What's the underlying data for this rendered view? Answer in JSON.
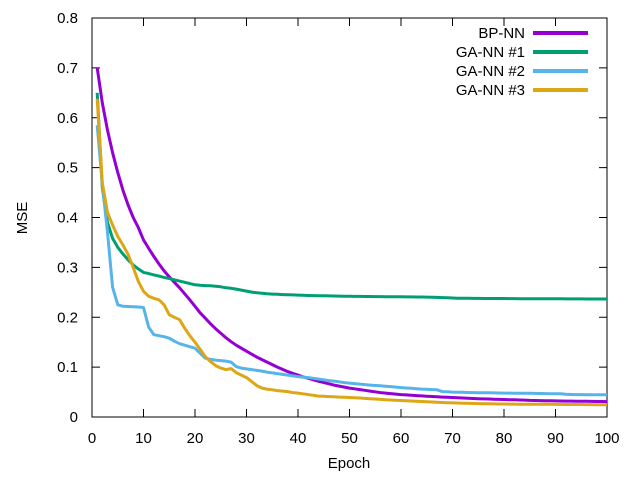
{
  "figure": {
    "background": "#ffffff",
    "text_color": "#000000",
    "axis_color": "#000000"
  },
  "chart_data": {
    "type": "line",
    "title": "",
    "xlabel": "Epoch",
    "ylabel": "MSE",
    "xlim": [
      0,
      100
    ],
    "ylim": [
      0,
      0.8
    ],
    "x_ticks": [
      0,
      10,
      20,
      30,
      40,
      50,
      60,
      70,
      80,
      90,
      100
    ],
    "x_tick_labels": [
      "0",
      "10",
      "20",
      "30",
      "40",
      "50",
      "60",
      "70",
      "80",
      "90",
      "100"
    ],
    "y_ticks": [
      0,
      0.1,
      0.2,
      0.3,
      0.4,
      0.5,
      0.6,
      0.7,
      0.8
    ],
    "y_tick_labels": [
      "0",
      "0.1",
      "0.2",
      "0.3",
      "0.4",
      "0.5",
      "0.6",
      "0.7",
      "0.8"
    ],
    "grid": false,
    "border_box": true,
    "tick_direction": "in",
    "ticks_mirrored": true,
    "legend_position": "top-right-inside",
    "x": [
      1,
      2,
      3,
      4,
      5,
      6,
      7,
      8,
      9,
      10,
      11,
      12,
      13,
      14,
      15,
      16,
      17,
      18,
      19,
      20,
      21,
      22,
      23,
      24,
      25,
      26,
      27,
      28,
      29,
      30,
      31,
      32,
      33,
      34,
      35,
      36,
      37,
      38,
      39,
      40,
      41,
      42,
      43,
      44,
      45,
      46,
      47,
      48,
      49,
      50,
      51,
      52,
      53,
      54,
      55,
      56,
      57,
      58,
      59,
      60,
      61,
      62,
      63,
      64,
      65,
      66,
      67,
      68,
      69,
      70,
      71,
      72,
      73,
      74,
      75,
      76,
      77,
      78,
      79,
      80,
      81,
      82,
      83,
      84,
      85,
      86,
      87,
      88,
      89,
      90,
      91,
      92,
      93,
      94,
      95,
      96,
      97,
      98,
      99,
      100
    ],
    "series": [
      {
        "name": "BP-NN",
        "color": "#9400D3",
        "values": [
          0.7,
          0.63,
          0.575,
          0.53,
          0.49,
          0.455,
          0.425,
          0.4,
          0.38,
          0.355,
          0.338,
          0.322,
          0.307,
          0.293,
          0.281,
          0.27,
          0.259,
          0.247,
          0.235,
          0.222,
          0.209,
          0.198,
          0.187,
          0.177,
          0.168,
          0.159,
          0.151,
          0.144,
          0.138,
          0.132,
          0.126,
          0.12,
          0.115,
          0.11,
          0.105,
          0.1,
          0.0955,
          0.091,
          0.0875,
          0.084,
          0.0805,
          0.0775,
          0.0745,
          0.0715,
          0.069,
          0.0665,
          0.064,
          0.062,
          0.06,
          0.058,
          0.0565,
          0.055,
          0.0535,
          0.052,
          0.0505,
          0.049,
          0.048,
          0.047,
          0.046,
          0.045,
          0.0443,
          0.0437,
          0.043,
          0.0424,
          0.0418,
          0.0412,
          0.0406,
          0.04,
          0.0395,
          0.039,
          0.0385,
          0.038,
          0.0375,
          0.037,
          0.0367,
          0.0363,
          0.036,
          0.0356,
          0.0353,
          0.035,
          0.0347,
          0.0344,
          0.0341,
          0.0338,
          0.0333,
          0.033,
          0.0328,
          0.0326,
          0.0324,
          0.0322,
          0.032,
          0.0319,
          0.0318,
          0.0317,
          0.0315,
          0.0314,
          0.0312,
          0.0311,
          0.031,
          0.0308
        ]
      },
      {
        "name": "GA-NN #1",
        "color": "#009E73",
        "values": [
          0.65,
          0.46,
          0.39,
          0.358,
          0.34,
          0.327,
          0.315,
          0.305,
          0.297,
          0.29,
          0.2875,
          0.285,
          0.2825,
          0.28,
          0.2775,
          0.275,
          0.2725,
          0.27,
          0.2675,
          0.265,
          0.264,
          0.2635,
          0.263,
          0.262,
          0.261,
          0.259,
          0.258,
          0.2565,
          0.2545,
          0.2525,
          0.2505,
          0.249,
          0.248,
          0.247,
          0.2465,
          0.246,
          0.2455,
          0.245,
          0.2448,
          0.2445,
          0.244,
          0.2437,
          0.2434,
          0.2432,
          0.243,
          0.2428,
          0.2426,
          0.2424,
          0.2422,
          0.242,
          0.2419,
          0.2418,
          0.2417,
          0.2416,
          0.2415,
          0.2414,
          0.2413,
          0.2412,
          0.2411,
          0.241,
          0.2409,
          0.2408,
          0.2407,
          0.2406,
          0.2405,
          0.2402,
          0.2398,
          0.2394,
          0.239,
          0.2385,
          0.2382,
          0.238,
          0.2379,
          0.2378,
          0.2377,
          0.2376,
          0.2376,
          0.2375,
          0.2375,
          0.2375,
          0.2374,
          0.2373,
          0.2372,
          0.2372,
          0.2371,
          0.2371,
          0.237,
          0.237,
          0.237,
          0.2369,
          0.2369,
          0.2368,
          0.2368,
          0.2367,
          0.2367,
          0.2366,
          0.2366,
          0.2365,
          0.2365,
          0.2365
        ]
      },
      {
        "name": "GA-NN #2",
        "color": "#56B4E9",
        "values": [
          0.585,
          0.468,
          0.37,
          0.26,
          0.225,
          0.222,
          0.2215,
          0.221,
          0.2205,
          0.2195,
          0.18,
          0.165,
          0.163,
          0.161,
          0.158,
          0.152,
          0.147,
          0.144,
          0.141,
          0.138,
          0.128,
          0.118,
          0.1155,
          0.114,
          0.113,
          0.112,
          0.11,
          0.101,
          0.098,
          0.0965,
          0.095,
          0.0935,
          0.092,
          0.09,
          0.0885,
          0.087,
          0.0855,
          0.084,
          0.0825,
          0.081,
          0.08,
          0.079,
          0.0775,
          0.076,
          0.0745,
          0.073,
          0.072,
          0.0705,
          0.069,
          0.068,
          0.067,
          0.066,
          0.065,
          0.064,
          0.0632,
          0.0625,
          0.0617,
          0.061,
          0.06,
          0.059,
          0.0582,
          0.0575,
          0.0567,
          0.056,
          0.0555,
          0.055,
          0.0545,
          0.051,
          0.0505,
          0.05,
          0.0497,
          0.0495,
          0.0492,
          0.049,
          0.0488,
          0.0487,
          0.0485,
          0.0483,
          0.0482,
          0.048,
          0.0479,
          0.0478,
          0.0477,
          0.0476,
          0.0475,
          0.0474,
          0.0472,
          0.047,
          0.0468,
          0.0467,
          0.0465,
          0.0455,
          0.0452,
          0.045,
          0.0449,
          0.0448,
          0.0447,
          0.0446,
          0.0445,
          0.0445
        ]
      },
      {
        "name": "GA-NN #3",
        "color": "#DCA614",
        "values": [
          0.638,
          0.47,
          0.41,
          0.385,
          0.362,
          0.345,
          0.326,
          0.3,
          0.272,
          0.252,
          0.242,
          0.238,
          0.235,
          0.225,
          0.205,
          0.2,
          0.195,
          0.178,
          0.163,
          0.15,
          0.136,
          0.121,
          0.111,
          0.103,
          0.098,
          0.095,
          0.097,
          0.089,
          0.084,
          0.079,
          0.071,
          0.063,
          0.058,
          0.056,
          0.0545,
          0.053,
          0.052,
          0.051,
          0.049,
          0.048,
          0.0465,
          0.045,
          0.0435,
          0.042,
          0.0415,
          0.041,
          0.0405,
          0.04,
          0.0395,
          0.039,
          0.0385,
          0.038,
          0.0373,
          0.0366,
          0.036,
          0.0352,
          0.0345,
          0.034,
          0.0335,
          0.033,
          0.0325,
          0.032,
          0.0315,
          0.031,
          0.0305,
          0.03,
          0.0295,
          0.029,
          0.0287,
          0.0283,
          0.028,
          0.0277,
          0.0274,
          0.0271,
          0.0269,
          0.0267,
          0.0265,
          0.0263,
          0.0261,
          0.026,
          0.0259,
          0.0258,
          0.0257,
          0.0256,
          0.0256,
          0.0255,
          0.0255,
          0.0254,
          0.0254,
          0.0253,
          0.0252,
          0.0251,
          0.0251,
          0.025,
          0.025,
          0.0249,
          0.0248,
          0.0247,
          0.0246,
          0.0245
        ]
      }
    ]
  }
}
